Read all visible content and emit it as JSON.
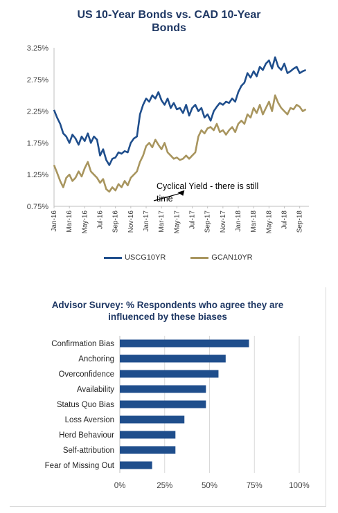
{
  "colors": {
    "us": "#1f4e8c",
    "can": "#a8955e",
    "bar": "#1f4e8c",
    "grid": "#d9d9d9",
    "title": "#1f3864"
  },
  "chart_data": [
    {
      "type": "line",
      "title": "US 10-Year Bonds vs. CAD 10-Year Bonds",
      "ylim": [
        0.75,
        3.25
      ],
      "yticks": [
        "0.75%",
        "1.25%",
        "1.75%",
        "2.25%",
        "2.75%",
        "3.25%"
      ],
      "ytick_values": [
        0.75,
        1.25,
        1.75,
        2.25,
        2.75,
        3.25
      ],
      "xticks": [
        "Jan-16",
        "Mar-16",
        "May-16",
        "Jul-16",
        "Sep-16",
        "Nov-16",
        "Jan-17",
        "Mar-17",
        "May-17",
        "Jul-17",
        "Sep-17",
        "Nov-17",
        "Jan-18",
        "Mar-18",
        "May-18",
        "Jul-18",
        "Sep-18"
      ],
      "xlim": [
        0,
        16.6
      ],
      "grid": false,
      "legend_position": "bottom",
      "annotation": {
        "text": "Cyclical Yield - there is still time",
        "x": 8.0,
        "y": 0.98
      },
      "series": [
        {
          "name": "USCG10YR",
          "x": [
            0,
            0.2,
            0.4,
            0.6,
            0.8,
            1.0,
            1.2,
            1.4,
            1.6,
            1.8,
            2.0,
            2.2,
            2.4,
            2.6,
            2.8,
            3.0,
            3.2,
            3.4,
            3.6,
            3.8,
            4.0,
            4.2,
            4.4,
            4.6,
            4.8,
            5.0,
            5.2,
            5.4,
            5.6,
            5.8,
            6.0,
            6.2,
            6.4,
            6.6,
            6.8,
            7.0,
            7.2,
            7.4,
            7.6,
            7.8,
            8.0,
            8.2,
            8.4,
            8.6,
            8.8,
            9.0,
            9.2,
            9.4,
            9.6,
            9.8,
            10.0,
            10.2,
            10.4,
            10.6,
            10.8,
            11.0,
            11.2,
            11.4,
            11.6,
            11.8,
            12.0,
            12.2,
            12.4,
            12.6,
            12.8,
            13.0,
            13.2,
            13.4,
            13.6,
            13.8,
            14.0,
            14.2,
            14.4,
            14.6,
            14.8,
            15.0,
            15.2,
            15.4,
            15.6,
            15.8,
            16.0,
            16.2,
            16.4
          ],
          "y": [
            2.27,
            2.15,
            2.05,
            1.9,
            1.85,
            1.75,
            1.88,
            1.82,
            1.72,
            1.85,
            1.78,
            1.9,
            1.75,
            1.85,
            1.8,
            1.55,
            1.65,
            1.48,
            1.4,
            1.5,
            1.52,
            1.6,
            1.58,
            1.62,
            1.6,
            1.75,
            1.82,
            1.85,
            2.2,
            2.35,
            2.45,
            2.4,
            2.5,
            2.45,
            2.55,
            2.42,
            2.35,
            2.45,
            2.3,
            2.38,
            2.28,
            2.3,
            2.22,
            2.35,
            2.18,
            2.3,
            2.35,
            2.25,
            2.3,
            2.15,
            2.2,
            2.1,
            2.25,
            2.32,
            2.38,
            2.35,
            2.4,
            2.38,
            2.45,
            2.4,
            2.55,
            2.65,
            2.7,
            2.85,
            2.78,
            2.88,
            2.8,
            2.95,
            2.9,
            3.0,
            3.05,
            2.92,
            3.1,
            2.95,
            2.9,
            3.0,
            2.85,
            2.88,
            2.92,
            2.95,
            2.85,
            2.88,
            2.9
          ]
        },
        {
          "name": "GCAN10YR",
          "x": [
            0,
            0.2,
            0.4,
            0.6,
            0.8,
            1.0,
            1.2,
            1.4,
            1.6,
            1.8,
            2.0,
            2.2,
            2.4,
            2.6,
            2.8,
            3.0,
            3.2,
            3.4,
            3.6,
            3.8,
            4.0,
            4.2,
            4.4,
            4.6,
            4.8,
            5.0,
            5.2,
            5.4,
            5.6,
            5.8,
            6.0,
            6.2,
            6.4,
            6.6,
            6.8,
            7.0,
            7.2,
            7.4,
            7.6,
            7.8,
            8.0,
            8.2,
            8.4,
            8.6,
            8.8,
            9.0,
            9.2,
            9.4,
            9.6,
            9.8,
            10.0,
            10.2,
            10.4,
            10.6,
            10.8,
            11.0,
            11.2,
            11.4,
            11.6,
            11.8,
            12.0,
            12.2,
            12.4,
            12.6,
            12.8,
            13.0,
            13.2,
            13.4,
            13.6,
            13.8,
            14.0,
            14.2,
            14.4,
            14.6,
            14.8,
            15.0,
            15.2,
            15.4,
            15.6,
            15.8,
            16.0,
            16.2,
            16.4
          ],
          "y": [
            1.4,
            1.28,
            1.15,
            1.05,
            1.2,
            1.25,
            1.15,
            1.2,
            1.3,
            1.22,
            1.35,
            1.45,
            1.3,
            1.25,
            1.2,
            1.12,
            1.18,
            1.02,
            0.98,
            1.05,
            1.0,
            1.1,
            1.05,
            1.15,
            1.08,
            1.2,
            1.25,
            1.3,
            1.45,
            1.55,
            1.7,
            1.75,
            1.68,
            1.8,
            1.72,
            1.65,
            1.75,
            1.6,
            1.55,
            1.5,
            1.52,
            1.48,
            1.5,
            1.55,
            1.5,
            1.55,
            1.6,
            1.85,
            1.95,
            1.9,
            1.98,
            2.0,
            1.95,
            2.05,
            1.92,
            1.95,
            1.88,
            1.95,
            2.0,
            1.92,
            2.05,
            2.1,
            2.05,
            2.2,
            2.15,
            2.3,
            2.22,
            2.35,
            2.2,
            2.3,
            2.4,
            2.25,
            2.5,
            2.38,
            2.3,
            2.25,
            2.2,
            2.3,
            2.28,
            2.35,
            2.32,
            2.25,
            2.28
          ]
        }
      ]
    },
    {
      "type": "bar",
      "orientation": "horizontal",
      "title": "Advisor Survey: % Respondents who agree they are influenced by these biases",
      "categories": [
        "Confirmation Bias",
        "Anchoring",
        "Overconfidence",
        "Availability",
        "Status Quo Bias",
        "Loss Aversion",
        "Herd Behaviour",
        "Self-attribution",
        "Fear of Missing Out"
      ],
      "values": [
        72,
        59,
        55,
        48,
        48,
        36,
        31,
        31,
        18
      ],
      "xlim": [
        0,
        100
      ],
      "xticks": [
        "0%",
        "25%",
        "50%",
        "75%",
        "100%"
      ],
      "xtick_values": [
        0,
        25,
        50,
        75,
        100
      ],
      "grid": true
    }
  ]
}
